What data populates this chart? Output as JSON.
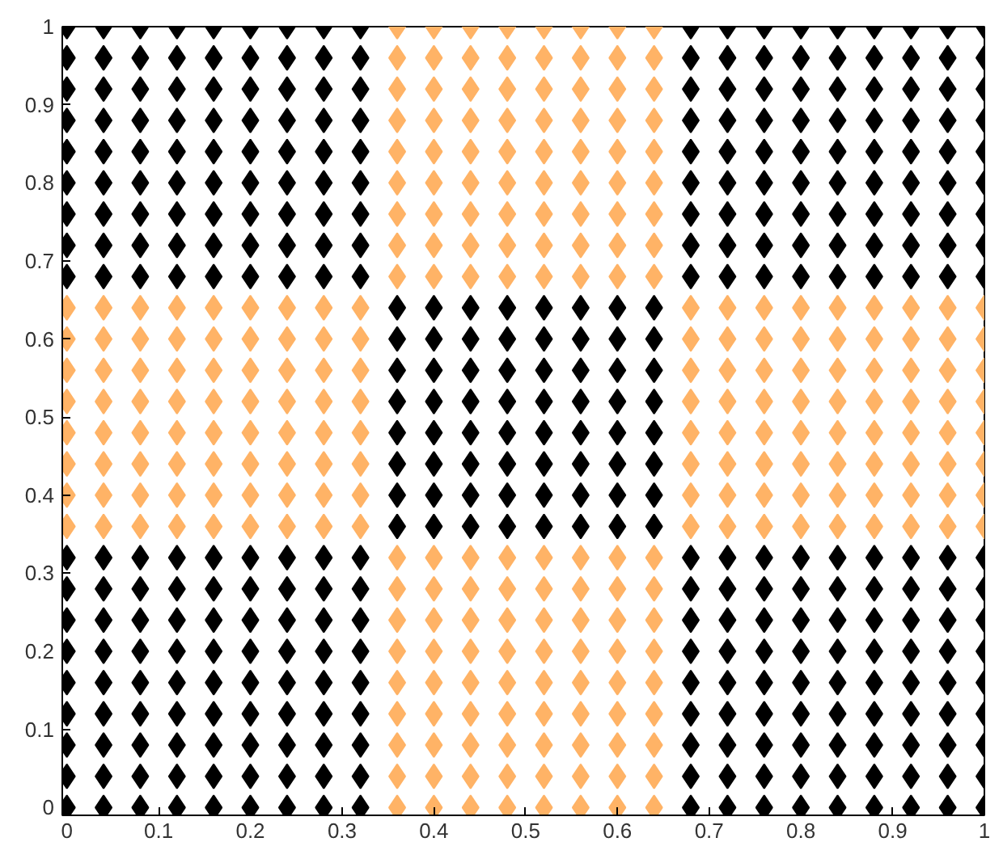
{
  "chart_data": {
    "type": "scatter",
    "marker": "diamond",
    "grid": false,
    "xlim": [
      -0.005,
      1
    ],
    "ylim": [
      -0.01,
      1
    ],
    "xticks": [
      0,
      0.1,
      0.2,
      0.3,
      0.4,
      0.5,
      0.6,
      0.7,
      0.8,
      0.9,
      1
    ],
    "yticks": [
      0,
      0.1,
      0.2,
      0.3,
      0.4,
      0.5,
      0.6,
      0.7,
      0.8,
      0.9,
      1
    ],
    "series": [
      {
        "color": "#000000",
        "x": [
          0,
          0.04,
          0.08,
          0.12,
          0.16,
          0.2,
          0.24,
          0.28,
          0.32,
          0,
          0.04,
          0.08,
          0.12,
          0.16,
          0.2,
          0.24,
          0.28,
          0.32,
          0,
          0.04,
          0.08,
          0.12,
          0.16,
          0.2,
          0.24,
          0.28,
          0.32,
          0,
          0.04,
          0.08,
          0.12,
          0.16,
          0.2,
          0.24,
          0.28,
          0.32,
          0,
          0.04,
          0.08,
          0.12,
          0.16,
          0.2,
          0.24,
          0.28,
          0.32,
          0,
          0.04,
          0.08,
          0.12,
          0.16,
          0.2,
          0.24,
          0.28,
          0.32,
          0,
          0.04,
          0.08,
          0.12,
          0.16,
          0.2,
          0.24,
          0.28,
          0.32,
          0,
          0.04,
          0.08,
          0.12,
          0.16,
          0.2,
          0.24,
          0.28,
          0.32,
          0,
          0.04,
          0.08,
          0.12,
          0.16,
          0.2,
          0.24,
          0.28,
          0.32
        ],
        "values": [
          0,
          0,
          0,
          0,
          0,
          0,
          0,
          0,
          0,
          0.04,
          0.04,
          0.04,
          0.04,
          0.04,
          0.04,
          0.04,
          0.04,
          0.04,
          0.08,
          0.08,
          0.08,
          0.08,
          0.08,
          0.08,
          0.08,
          0.08,
          0.08,
          0.12,
          0.12,
          0.12,
          0.12,
          0.12,
          0.12,
          0.12,
          0.12,
          0.12,
          0.16,
          0.16,
          0.16,
          0.16,
          0.16,
          0.16,
          0.16,
          0.16,
          0.16,
          0.2,
          0.2,
          0.2,
          0.2,
          0.2,
          0.2,
          0.2,
          0.2,
          0.2,
          0.24,
          0.24,
          0.24,
          0.24,
          0.24,
          0.24,
          0.24,
          0.24,
          0.24,
          0.28,
          0.28,
          0.28,
          0.28,
          0.28,
          0.28,
          0.28,
          0.28,
          0.28,
          0.32,
          0.32,
          0.32,
          0.32,
          0.32,
          0.32,
          0.32,
          0.32,
          0.32
        ]
      },
      {
        "color": "#ffb366",
        "x": [
          0.36,
          0.4,
          0.44,
          0.48,
          0.52,
          0.56,
          0.6,
          0.64,
          0.36,
          0.4,
          0.44,
          0.48,
          0.52,
          0.56,
          0.6,
          0.64,
          0.36,
          0.4,
          0.44,
          0.48,
          0.52,
          0.56,
          0.6,
          0.64,
          0.36,
          0.4,
          0.44,
          0.48,
          0.52,
          0.56,
          0.6,
          0.64,
          0.36,
          0.4,
          0.44,
          0.48,
          0.52,
          0.56,
          0.6,
          0.64,
          0.36,
          0.4,
          0.44,
          0.48,
          0.52,
          0.56,
          0.6,
          0.64,
          0.36,
          0.4,
          0.44,
          0.48,
          0.52,
          0.56,
          0.6,
          0.64,
          0.36,
          0.4,
          0.44,
          0.48,
          0.52,
          0.56,
          0.6,
          0.64,
          0.36,
          0.4,
          0.44,
          0.48,
          0.52,
          0.56,
          0.6,
          0.64
        ],
        "values": [
          0,
          0,
          0,
          0,
          0,
          0,
          0,
          0,
          0.04,
          0.04,
          0.04,
          0.04,
          0.04,
          0.04,
          0.04,
          0.04,
          0.08,
          0.08,
          0.08,
          0.08,
          0.08,
          0.08,
          0.08,
          0.08,
          0.12,
          0.12,
          0.12,
          0.12,
          0.12,
          0.12,
          0.12,
          0.12,
          0.16,
          0.16,
          0.16,
          0.16,
          0.16,
          0.16,
          0.16,
          0.16,
          0.2,
          0.2,
          0.2,
          0.2,
          0.2,
          0.2,
          0.2,
          0.2,
          0.24,
          0.24,
          0.24,
          0.24,
          0.24,
          0.24,
          0.24,
          0.24,
          0.28,
          0.28,
          0.28,
          0.28,
          0.28,
          0.28,
          0.28,
          0.28,
          0.32,
          0.32,
          0.32,
          0.32,
          0.32,
          0.32,
          0.32,
          0.32
        ]
      },
      {
        "color": "#000000",
        "x": [
          0.68,
          0.72,
          0.76,
          0.8,
          0.84,
          0.88,
          0.92,
          0.96,
          1,
          0.68,
          0.72,
          0.76,
          0.8,
          0.84,
          0.88,
          0.92,
          0.96,
          1,
          0.68,
          0.72,
          0.76,
          0.8,
          0.84,
          0.88,
          0.92,
          0.96,
          1,
          0.68,
          0.72,
          0.76,
          0.8,
          0.84,
          0.88,
          0.92,
          0.96,
          1,
          0.68,
          0.72,
          0.76,
          0.8,
          0.84,
          0.88,
          0.92,
          0.96,
          1,
          0.68,
          0.72,
          0.76,
          0.8,
          0.84,
          0.88,
          0.92,
          0.96,
          1,
          0.68,
          0.72,
          0.76,
          0.8,
          0.84,
          0.88,
          0.92,
          0.96,
          1,
          0.68,
          0.72,
          0.76,
          0.8,
          0.84,
          0.88,
          0.92,
          0.96,
          1,
          0.68,
          0.72,
          0.76,
          0.8,
          0.84,
          0.88,
          0.92,
          0.96,
          1
        ],
        "values": [
          0,
          0,
          0,
          0,
          0,
          0,
          0,
          0,
          0,
          0.04,
          0.04,
          0.04,
          0.04,
          0.04,
          0.04,
          0.04,
          0.04,
          0.04,
          0.08,
          0.08,
          0.08,
          0.08,
          0.08,
          0.08,
          0.08,
          0.08,
          0.08,
          0.12,
          0.12,
          0.12,
          0.12,
          0.12,
          0.12,
          0.12,
          0.12,
          0.12,
          0.16,
          0.16,
          0.16,
          0.16,
          0.16,
          0.16,
          0.16,
          0.16,
          0.16,
          0.2,
          0.2,
          0.2,
          0.2,
          0.2,
          0.2,
          0.2,
          0.2,
          0.2,
          0.24,
          0.24,
          0.24,
          0.24,
          0.24,
          0.24,
          0.24,
          0.24,
          0.24,
          0.28,
          0.28,
          0.28,
          0.28,
          0.28,
          0.28,
          0.28,
          0.28,
          0.28,
          0.32,
          0.32,
          0.32,
          0.32,
          0.32,
          0.32,
          0.32,
          0.32,
          0.32
        ]
      },
      {
        "color": "#ffb366",
        "x": [
          0,
          0.04,
          0.08,
          0.12,
          0.16,
          0.2,
          0.24,
          0.28,
          0.32,
          0,
          0.04,
          0.08,
          0.12,
          0.16,
          0.2,
          0.24,
          0.28,
          0.32,
          0,
          0.04,
          0.08,
          0.12,
          0.16,
          0.2,
          0.24,
          0.28,
          0.32,
          0,
          0.04,
          0.08,
          0.12,
          0.16,
          0.2,
          0.24,
          0.28,
          0.32,
          0,
          0.04,
          0.08,
          0.12,
          0.16,
          0.2,
          0.24,
          0.28,
          0.32,
          0,
          0.04,
          0.08,
          0.12,
          0.16,
          0.2,
          0.24,
          0.28,
          0.32,
          0,
          0.04,
          0.08,
          0.12,
          0.16,
          0.2,
          0.24,
          0.28,
          0.32,
          0,
          0.04,
          0.08,
          0.12,
          0.16,
          0.2,
          0.24,
          0.28,
          0.32
        ],
        "values": [
          0.36,
          0.36,
          0.36,
          0.36,
          0.36,
          0.36,
          0.36,
          0.36,
          0.36,
          0.4,
          0.4,
          0.4,
          0.4,
          0.4,
          0.4,
          0.4,
          0.4,
          0.4,
          0.44,
          0.44,
          0.44,
          0.44,
          0.44,
          0.44,
          0.44,
          0.44,
          0.44,
          0.48,
          0.48,
          0.48,
          0.48,
          0.48,
          0.48,
          0.48,
          0.48,
          0.48,
          0.52,
          0.52,
          0.52,
          0.52,
          0.52,
          0.52,
          0.52,
          0.52,
          0.52,
          0.56,
          0.56,
          0.56,
          0.56,
          0.56,
          0.56,
          0.56,
          0.56,
          0.56,
          0.6,
          0.6,
          0.6,
          0.6,
          0.6,
          0.6,
          0.6,
          0.6,
          0.6,
          0.64,
          0.64,
          0.64,
          0.64,
          0.64,
          0.64,
          0.64,
          0.64,
          0.64
        ]
      },
      {
        "color": "#000000",
        "x": [
          0.36,
          0.4,
          0.44,
          0.48,
          0.52,
          0.56,
          0.6,
          0.64,
          0.36,
          0.4,
          0.44,
          0.48,
          0.52,
          0.56,
          0.6,
          0.64,
          0.36,
          0.4,
          0.44,
          0.48,
          0.52,
          0.56,
          0.6,
          0.64,
          0.36,
          0.4,
          0.44,
          0.48,
          0.52,
          0.56,
          0.6,
          0.64,
          0.36,
          0.4,
          0.44,
          0.48,
          0.52,
          0.56,
          0.6,
          0.64,
          0.36,
          0.4,
          0.44,
          0.48,
          0.52,
          0.56,
          0.6,
          0.64,
          0.36,
          0.4,
          0.44,
          0.48,
          0.52,
          0.56,
          0.6,
          0.64,
          0.36,
          0.4,
          0.44,
          0.48,
          0.52,
          0.56,
          0.6,
          0.64
        ],
        "values": [
          0.36,
          0.36,
          0.36,
          0.36,
          0.36,
          0.36,
          0.36,
          0.36,
          0.4,
          0.4,
          0.4,
          0.4,
          0.4,
          0.4,
          0.4,
          0.4,
          0.44,
          0.44,
          0.44,
          0.44,
          0.44,
          0.44,
          0.44,
          0.44,
          0.48,
          0.48,
          0.48,
          0.48,
          0.48,
          0.48,
          0.48,
          0.48,
          0.52,
          0.52,
          0.52,
          0.52,
          0.52,
          0.52,
          0.52,
          0.52,
          0.56,
          0.56,
          0.56,
          0.56,
          0.56,
          0.56,
          0.56,
          0.56,
          0.6,
          0.6,
          0.6,
          0.6,
          0.6,
          0.6,
          0.6,
          0.6,
          0.64,
          0.64,
          0.64,
          0.64,
          0.64,
          0.64,
          0.64,
          0.64
        ]
      },
      {
        "color": "#ffb366",
        "x": [
          0.68,
          0.72,
          0.76,
          0.8,
          0.84,
          0.88,
          0.92,
          0.96,
          1,
          0.68,
          0.72,
          0.76,
          0.8,
          0.84,
          0.88,
          0.92,
          0.96,
          1,
          0.68,
          0.72,
          0.76,
          0.8,
          0.84,
          0.88,
          0.92,
          0.96,
          1,
          0.68,
          0.72,
          0.76,
          0.8,
          0.84,
          0.88,
          0.92,
          0.96,
          1,
          0.68,
          0.72,
          0.76,
          0.8,
          0.84,
          0.88,
          0.92,
          0.96,
          1,
          0.68,
          0.72,
          0.76,
          0.8,
          0.84,
          0.88,
          0.92,
          0.96,
          1,
          0.68,
          0.72,
          0.76,
          0.8,
          0.84,
          0.88,
          0.92,
          0.96,
          1,
          0.68,
          0.72,
          0.76,
          0.8,
          0.84,
          0.88,
          0.92,
          0.96,
          1
        ],
        "values": [
          0.36,
          0.36,
          0.36,
          0.36,
          0.36,
          0.36,
          0.36,
          0.36,
          0.36,
          0.4,
          0.4,
          0.4,
          0.4,
          0.4,
          0.4,
          0.4,
          0.4,
          0.4,
          0.44,
          0.44,
          0.44,
          0.44,
          0.44,
          0.44,
          0.44,
          0.44,
          0.44,
          0.48,
          0.48,
          0.48,
          0.48,
          0.48,
          0.48,
          0.48,
          0.48,
          0.48,
          0.52,
          0.52,
          0.52,
          0.52,
          0.52,
          0.52,
          0.52,
          0.52,
          0.52,
          0.56,
          0.56,
          0.56,
          0.56,
          0.56,
          0.56,
          0.56,
          0.56,
          0.56,
          0.6,
          0.6,
          0.6,
          0.6,
          0.6,
          0.6,
          0.6,
          0.6,
          0.6,
          0.64,
          0.64,
          0.64,
          0.64,
          0.64,
          0.64,
          0.64,
          0.64,
          0.64
        ]
      },
      {
        "color": "#000000",
        "x": [
          0,
          0.04,
          0.08,
          0.12,
          0.16,
          0.2,
          0.24,
          0.28,
          0.32,
          0,
          0.04,
          0.08,
          0.12,
          0.16,
          0.2,
          0.24,
          0.28,
          0.32,
          0,
          0.04,
          0.08,
          0.12,
          0.16,
          0.2,
          0.24,
          0.28,
          0.32,
          0,
          0.04,
          0.08,
          0.12,
          0.16,
          0.2,
          0.24,
          0.28,
          0.32,
          0,
          0.04,
          0.08,
          0.12,
          0.16,
          0.2,
          0.24,
          0.28,
          0.32,
          0,
          0.04,
          0.08,
          0.12,
          0.16,
          0.2,
          0.24,
          0.28,
          0.32,
          0,
          0.04,
          0.08,
          0.12,
          0.16,
          0.2,
          0.24,
          0.28,
          0.32,
          0,
          0.04,
          0.08,
          0.12,
          0.16,
          0.2,
          0.24,
          0.28,
          0.32,
          0,
          0.04,
          0.08,
          0.12,
          0.16,
          0.2,
          0.24,
          0.28,
          0.32
        ],
        "values": [
          0.68,
          0.68,
          0.68,
          0.68,
          0.68,
          0.68,
          0.68,
          0.68,
          0.68,
          0.72,
          0.72,
          0.72,
          0.72,
          0.72,
          0.72,
          0.72,
          0.72,
          0.72,
          0.76,
          0.76,
          0.76,
          0.76,
          0.76,
          0.76,
          0.76,
          0.76,
          0.76,
          0.8,
          0.8,
          0.8,
          0.8,
          0.8,
          0.8,
          0.8,
          0.8,
          0.8,
          0.84,
          0.84,
          0.84,
          0.84,
          0.84,
          0.84,
          0.84,
          0.84,
          0.84,
          0.88,
          0.88,
          0.88,
          0.88,
          0.88,
          0.88,
          0.88,
          0.88,
          0.88,
          0.92,
          0.92,
          0.92,
          0.92,
          0.92,
          0.92,
          0.92,
          0.92,
          0.92,
          0.96,
          0.96,
          0.96,
          0.96,
          0.96,
          0.96,
          0.96,
          0.96,
          0.96,
          1,
          1,
          1,
          1,
          1,
          1,
          1,
          1,
          1
        ]
      },
      {
        "color": "#ffb366",
        "x": [
          0.36,
          0.4,
          0.44,
          0.48,
          0.52,
          0.56,
          0.6,
          0.64,
          0.36,
          0.4,
          0.44,
          0.48,
          0.52,
          0.56,
          0.6,
          0.64,
          0.36,
          0.4,
          0.44,
          0.48,
          0.52,
          0.56,
          0.6,
          0.64,
          0.36,
          0.4,
          0.44,
          0.48,
          0.52,
          0.56,
          0.6,
          0.64,
          0.36,
          0.4,
          0.44,
          0.48,
          0.52,
          0.56,
          0.6,
          0.64,
          0.36,
          0.4,
          0.44,
          0.48,
          0.52,
          0.56,
          0.6,
          0.64,
          0.36,
          0.4,
          0.44,
          0.48,
          0.52,
          0.56,
          0.6,
          0.64,
          0.36,
          0.4,
          0.44,
          0.48,
          0.52,
          0.56,
          0.6,
          0.64,
          0.36,
          0.4,
          0.44,
          0.48,
          0.52,
          0.56,
          0.6,
          0.64
        ],
        "values": [
          0.68,
          0.68,
          0.68,
          0.68,
          0.68,
          0.68,
          0.68,
          0.68,
          0.72,
          0.72,
          0.72,
          0.72,
          0.72,
          0.72,
          0.72,
          0.72,
          0.76,
          0.76,
          0.76,
          0.76,
          0.76,
          0.76,
          0.76,
          0.76,
          0.8,
          0.8,
          0.8,
          0.8,
          0.8,
          0.8,
          0.8,
          0.8,
          0.84,
          0.84,
          0.84,
          0.84,
          0.84,
          0.84,
          0.84,
          0.84,
          0.88,
          0.88,
          0.88,
          0.88,
          0.88,
          0.88,
          0.88,
          0.88,
          0.92,
          0.92,
          0.92,
          0.92,
          0.92,
          0.92,
          0.92,
          0.92,
          0.96,
          0.96,
          0.96,
          0.96,
          0.96,
          0.96,
          0.96,
          0.96,
          1,
          1,
          1,
          1,
          1,
          1,
          1,
          1
        ]
      },
      {
        "color": "#000000",
        "x": [
          0.68,
          0.72,
          0.76,
          0.8,
          0.84,
          0.88,
          0.92,
          0.96,
          1,
          0.68,
          0.72,
          0.76,
          0.8,
          0.84,
          0.88,
          0.92,
          0.96,
          1,
          0.68,
          0.72,
          0.76,
          0.8,
          0.84,
          0.88,
          0.92,
          0.96,
          1,
          0.68,
          0.72,
          0.76,
          0.8,
          0.84,
          0.88,
          0.92,
          0.96,
          1,
          0.68,
          0.72,
          0.76,
          0.8,
          0.84,
          0.88,
          0.92,
          0.96,
          1,
          0.68,
          0.72,
          0.76,
          0.8,
          0.84,
          0.88,
          0.92,
          0.96,
          1,
          0.68,
          0.72,
          0.76,
          0.8,
          0.84,
          0.88,
          0.92,
          0.96,
          1,
          0.68,
          0.72,
          0.76,
          0.8,
          0.84,
          0.88,
          0.92,
          0.96,
          1,
          0.68,
          0.72,
          0.76,
          0.8,
          0.84,
          0.88,
          0.92,
          0.96,
          1
        ],
        "values": [
          0.68,
          0.68,
          0.68,
          0.68,
          0.68,
          0.68,
          0.68,
          0.68,
          0.68,
          0.72,
          0.72,
          0.72,
          0.72,
          0.72,
          0.72,
          0.72,
          0.72,
          0.72,
          0.76,
          0.76,
          0.76,
          0.76,
          0.76,
          0.76,
          0.76,
          0.76,
          0.76,
          0.8,
          0.8,
          0.8,
          0.8,
          0.8,
          0.8,
          0.8,
          0.8,
          0.8,
          0.84,
          0.84,
          0.84,
          0.84,
          0.84,
          0.84,
          0.84,
          0.84,
          0.84,
          0.88,
          0.88,
          0.88,
          0.88,
          0.88,
          0.88,
          0.88,
          0.88,
          0.88,
          0.92,
          0.92,
          0.92,
          0.92,
          0.92,
          0.92,
          0.92,
          0.92,
          0.92,
          0.96,
          0.96,
          0.96,
          0.96,
          0.96,
          0.96,
          0.96,
          0.96,
          0.96,
          1,
          1,
          1,
          1,
          1,
          1,
          1,
          1,
          1
        ]
      }
    ]
  }
}
